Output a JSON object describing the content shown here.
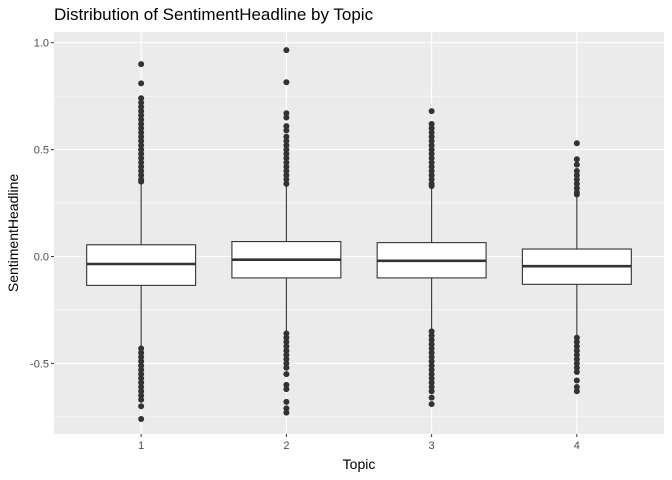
{
  "chart_data": {
    "type": "box",
    "title": "Distribution of SentimentHeadline by Topic",
    "xlabel": "Topic",
    "ylabel": "SentimentHeadline",
    "categories": [
      "1",
      "2",
      "3",
      "4"
    ],
    "ylim": [
      -0.83,
      1.05
    ],
    "y_ticks": [
      -0.5,
      0.0,
      0.5,
      1.0
    ],
    "y_tick_labels": [
      "-0.5",
      "0.0",
      "0.5",
      "1.0"
    ],
    "grid": true,
    "colors": {
      "panel": "#ebebeb",
      "grid_major": "#ffffff",
      "box_fill": "#ffffff",
      "box_stroke": "#333333",
      "outlier": "#333333"
    },
    "boxes": [
      {
        "category": "1",
        "q1": -0.135,
        "median": -0.035,
        "q3": 0.055,
        "whisker_low": -0.42,
        "whisker_high": 0.34,
        "outliers": [
          0.9,
          0.81,
          0.74,
          0.72,
          0.7,
          0.68,
          0.66,
          0.64,
          0.62,
          0.6,
          0.58,
          0.56,
          0.54,
          0.52,
          0.5,
          0.48,
          0.46,
          0.44,
          0.42,
          0.4,
          0.38,
          0.36,
          0.35,
          -0.43,
          -0.45,
          -0.47,
          -0.49,
          -0.51,
          -0.53,
          -0.55,
          -0.57,
          -0.59,
          -0.61,
          -0.63,
          -0.65,
          -0.67,
          -0.7,
          -0.76
        ]
      },
      {
        "category": "2",
        "q1": -0.1,
        "median": -0.015,
        "q3": 0.07,
        "whisker_low": -0.355,
        "whisker_high": 0.33,
        "outliers": [
          0.965,
          0.815,
          0.67,
          0.65,
          0.61,
          0.59,
          0.56,
          0.54,
          0.52,
          0.5,
          0.48,
          0.46,
          0.44,
          0.42,
          0.4,
          0.38,
          0.36,
          0.34,
          -0.36,
          -0.38,
          -0.4,
          -0.42,
          -0.44,
          -0.46,
          -0.48,
          -0.5,
          -0.52,
          -0.55,
          -0.6,
          -0.62,
          -0.68,
          -0.71,
          -0.73
        ]
      },
      {
        "category": "3",
        "q1": -0.1,
        "median": -0.02,
        "q3": 0.065,
        "whisker_low": -0.35,
        "whisker_high": 0.32,
        "outliers": [
          0.68,
          0.62,
          0.6,
          0.58,
          0.56,
          0.54,
          0.52,
          0.5,
          0.48,
          0.46,
          0.44,
          0.42,
          0.4,
          0.38,
          0.36,
          0.34,
          0.33,
          -0.35,
          -0.37,
          -0.39,
          -0.41,
          -0.43,
          -0.45,
          -0.47,
          -0.49,
          -0.51,
          -0.53,
          -0.55,
          -0.57,
          -0.59,
          -0.61,
          -0.63,
          -0.66,
          -0.69
        ]
      },
      {
        "category": "4",
        "q1": -0.13,
        "median": -0.045,
        "q3": 0.035,
        "whisker_low": -0.38,
        "whisker_high": 0.28,
        "outliers": [
          0.53,
          0.455,
          0.43,
          0.4,
          0.38,
          0.36,
          0.34,
          0.32,
          0.3,
          0.29,
          -0.38,
          -0.4,
          -0.42,
          -0.44,
          -0.46,
          -0.48,
          -0.5,
          -0.52,
          -0.54,
          -0.58,
          -0.61,
          -0.63
        ]
      }
    ]
  }
}
